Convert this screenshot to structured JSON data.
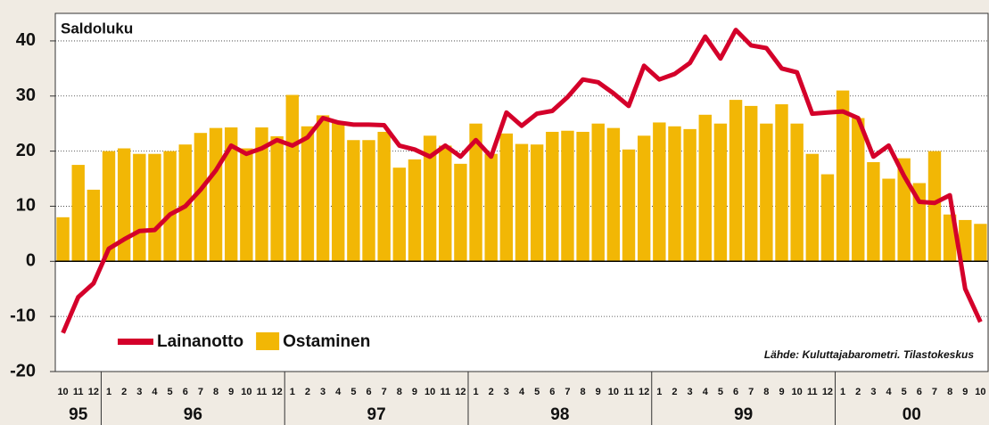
{
  "chart_data": {
    "type": "bar_line",
    "ylabel": "Saldoluku",
    "source": "Lähde: Kuluttajabarometri. Tilastokeskus",
    "categories": [
      "10",
      "11",
      "12",
      "1",
      "2",
      "3",
      "4",
      "5",
      "6",
      "7",
      "8",
      "9",
      "10",
      "11",
      "12",
      "1",
      "2",
      "3",
      "4",
      "5",
      "6",
      "7",
      "8",
      "9",
      "10",
      "11",
      "12",
      "1",
      "2",
      "3",
      "4",
      "5",
      "6",
      "7",
      "8",
      "9",
      "10",
      "11",
      "12",
      "1",
      "2",
      "3",
      "4",
      "5",
      "6",
      "7",
      "8",
      "9",
      "10",
      "11",
      "12",
      "1",
      "2",
      "3",
      "4",
      "5",
      "6",
      "7",
      "8",
      "9",
      "10"
    ],
    "years": [
      "95",
      "96",
      "97",
      "98",
      "99",
      "00"
    ],
    "series": [
      {
        "name": "Lainanotto",
        "color": "#d4002a",
        "kind": "line",
        "values": [
          -13,
          -6.5,
          -4,
          2.3,
          4,
          5.5,
          5.7,
          8.5,
          10,
          13,
          16.5,
          21,
          19.5,
          20.5,
          22,
          21,
          22.5,
          26,
          25.2,
          24.8,
          24.8,
          24.7,
          21,
          20.3,
          19,
          21,
          19,
          22,
          19,
          27,
          24.6,
          26.8,
          27.3,
          29.8,
          33,
          32.5,
          30.5,
          28.2,
          35.5,
          33,
          34,
          36,
          40.8,
          36.8,
          42,
          39.2,
          38.7,
          35,
          34.3,
          26.8,
          27,
          27.2,
          26,
          19,
          21,
          15.5,
          10.8,
          10.6,
          12,
          -5,
          -11
        ]
      },
      {
        "name": "Ostaminen",
        "color": "#f2b705",
        "kind": "bar",
        "values": [
          8,
          17.5,
          13,
          20,
          20.5,
          19.5,
          19.5,
          20,
          21.2,
          23.3,
          24.2,
          24.3,
          20.5,
          24.3,
          22.7,
          30.2,
          24.5,
          26.5,
          25.2,
          22,
          22,
          23.5,
          17,
          18.5,
          22.8,
          21,
          17.7,
          25,
          19.5,
          23.2,
          21.3,
          21.2,
          23.5,
          23.7,
          23.5,
          25,
          24.2,
          20.3,
          22.8,
          25.2,
          24.5,
          24,
          26.6,
          25,
          29.3,
          28.2,
          25,
          28.5,
          25,
          19.5,
          15.8,
          31,
          26,
          18,
          15,
          18.7,
          14.2,
          20,
          8.5,
          7.5,
          6.8
        ]
      }
    ],
    "ylim": [
      -20,
      45
    ],
    "yticks": [
      -20,
      -10,
      0,
      10,
      20,
      30,
      40
    ],
    "grid": true
  }
}
